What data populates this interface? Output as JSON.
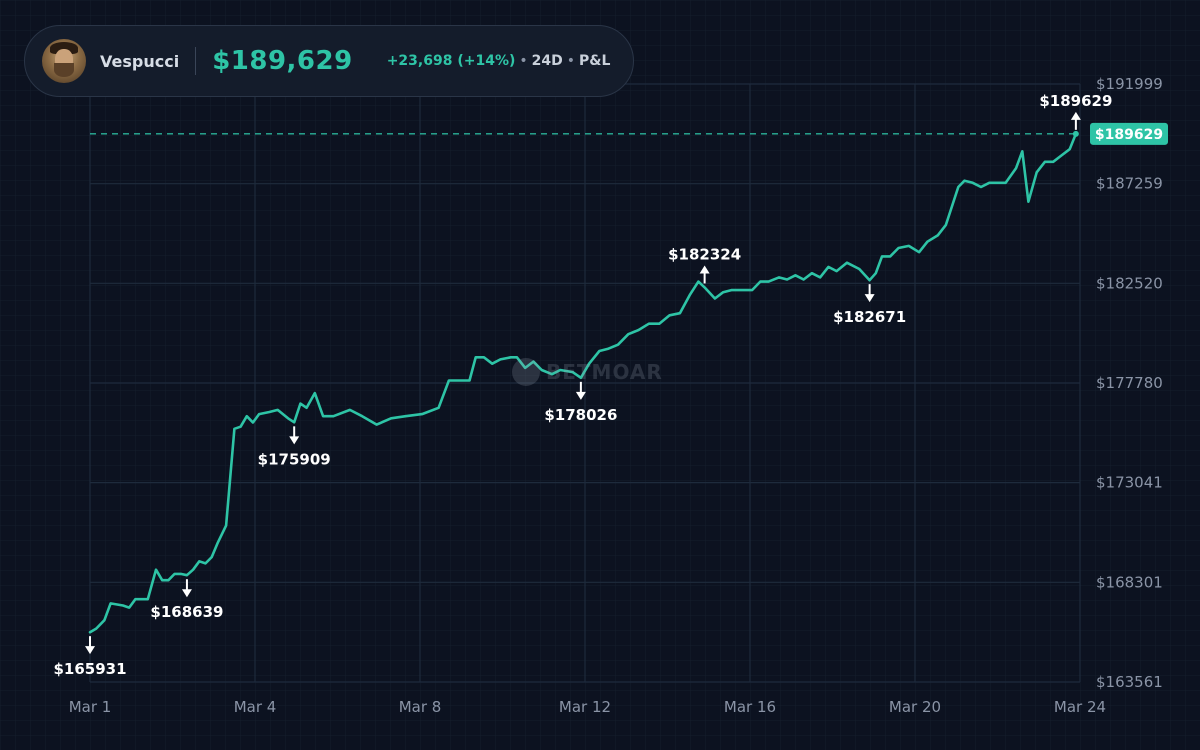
{
  "header": {
    "user_name": "Vespucci",
    "balance": "$189,629",
    "change": "+23,698  (+14%)",
    "period": "24D",
    "metric": "P&L"
  },
  "watermark": {
    "text": "BETMOAR"
  },
  "colors": {
    "line": "#2ec4a6",
    "background": "#0c1220",
    "grid": "#1e2b3c"
  },
  "chart_data": {
    "type": "line",
    "title": "",
    "xlabel": "",
    "ylabel": "",
    "x_range_days": [
      0,
      23
    ],
    "ylim": [
      163561,
      191999
    ],
    "y_ticks": [
      "$191999",
      "$187259",
      "$182520",
      "$177780",
      "$173041",
      "$168301",
      "$163561"
    ],
    "y_tick_values": [
      191999,
      187259,
      182520,
      177780,
      173041,
      168301,
      163561
    ],
    "x_ticks": [
      "Mar 1",
      "Mar 4",
      "Mar 8",
      "Mar 12",
      "Mar 16",
      "Mar 20",
      "Mar 24"
    ],
    "x_tick_days": [
      0,
      4,
      8,
      12,
      16,
      20,
      24
    ],
    "current_value": 189629,
    "current_label": "$189629",
    "series": [
      {
        "values": [
          [
            0,
            165931
          ],
          [
            0.15,
            166100
          ],
          [
            0.35,
            166500
          ],
          [
            0.5,
            167300
          ],
          [
            0.8,
            167200
          ],
          [
            0.95,
            167100
          ],
          [
            1.1,
            167500
          ],
          [
            1.4,
            167500
          ],
          [
            1.6,
            168900
          ],
          [
            1.75,
            168400
          ],
          [
            1.9,
            168400
          ],
          [
            2.05,
            168700
          ],
          [
            2.2,
            168700
          ],
          [
            2.35,
            168639
          ],
          [
            2.5,
            168900
          ],
          [
            2.65,
            169300
          ],
          [
            2.8,
            169200
          ],
          [
            2.95,
            169500
          ],
          [
            3.1,
            170200
          ],
          [
            3.3,
            171000
          ],
          [
            3.5,
            175600
          ],
          [
            3.65,
            175700
          ],
          [
            3.8,
            176200
          ],
          [
            3.95,
            175900
          ],
          [
            4.1,
            176300
          ],
          [
            4.35,
            176400
          ],
          [
            4.55,
            176500
          ],
          [
            4.8,
            176100
          ],
          [
            4.95,
            175909
          ],
          [
            5.1,
            176800
          ],
          [
            5.25,
            176600
          ],
          [
            5.45,
            177300
          ],
          [
            5.65,
            176200
          ],
          [
            5.9,
            176200
          ],
          [
            6.3,
            176500
          ],
          [
            6.6,
            176200
          ],
          [
            6.95,
            175800
          ],
          [
            7.3,
            176100
          ],
          [
            7.65,
            176200
          ],
          [
            8.05,
            176300
          ],
          [
            8.45,
            176600
          ],
          [
            8.7,
            177900
          ],
          [
            9.2,
            177900
          ],
          [
            9.35,
            179000
          ],
          [
            9.55,
            179000
          ],
          [
            9.75,
            178700
          ],
          [
            9.95,
            178900
          ],
          [
            10.2,
            179000
          ],
          [
            10.35,
            179000
          ],
          [
            10.55,
            178500
          ],
          [
            10.75,
            178800
          ],
          [
            10.95,
            178400
          ],
          [
            11.2,
            178200
          ],
          [
            11.4,
            178400
          ],
          [
            11.7,
            178300
          ],
          [
            11.9,
            178026
          ],
          [
            12.1,
            178700
          ],
          [
            12.35,
            179300
          ],
          [
            12.55,
            179400
          ],
          [
            12.8,
            179600
          ],
          [
            13.05,
            180100
          ],
          [
            13.3,
            180300
          ],
          [
            13.55,
            180600
          ],
          [
            13.8,
            180600
          ],
          [
            14.05,
            181000
          ],
          [
            14.3,
            181100
          ],
          [
            14.55,
            182000
          ],
          [
            14.75,
            182600
          ],
          [
            14.9,
            182324
          ],
          [
            15.15,
            181800
          ],
          [
            15.35,
            182100
          ],
          [
            15.55,
            182200
          ],
          [
            15.8,
            182200
          ],
          [
            16.05,
            182200
          ],
          [
            16.25,
            182600
          ],
          [
            16.45,
            182600
          ],
          [
            16.7,
            182800
          ],
          [
            16.9,
            182700
          ],
          [
            17.1,
            182900
          ],
          [
            17.3,
            182700
          ],
          [
            17.5,
            183000
          ],
          [
            17.7,
            182800
          ],
          [
            17.9,
            183300
          ],
          [
            18.1,
            183100
          ],
          [
            18.35,
            183500
          ],
          [
            18.65,
            183200
          ],
          [
            18.9,
            182671
          ],
          [
            19.05,
            183000
          ],
          [
            19.2,
            183800
          ],
          [
            19.4,
            183800
          ],
          [
            19.6,
            184200
          ],
          [
            19.85,
            184300
          ],
          [
            20.1,
            184000
          ],
          [
            20.3,
            184500
          ],
          [
            20.55,
            184800
          ],
          [
            20.75,
            185300
          ],
          [
            21.05,
            187100
          ],
          [
            21.2,
            187400
          ],
          [
            21.4,
            187300
          ],
          [
            21.6,
            187100
          ],
          [
            21.8,
            187300
          ],
          [
            22.05,
            187300
          ],
          [
            22.2,
            187300
          ],
          [
            22.45,
            188000
          ],
          [
            22.6,
            188800
          ],
          [
            22.75,
            186400
          ],
          [
            22.95,
            187800
          ],
          [
            23.15,
            188300
          ],
          [
            23.35,
            188300
          ],
          [
            23.55,
            188600
          ],
          [
            23.75,
            188900
          ],
          [
            23.9,
            189629
          ]
        ]
      }
    ],
    "annotations": [
      {
        "day": 0,
        "value": 165931,
        "dir": "down",
        "label": "$165931"
      },
      {
        "day": 2.35,
        "value": 168639,
        "dir": "down",
        "label": "$168639"
      },
      {
        "day": 4.95,
        "value": 175909,
        "dir": "down",
        "label": "$175909"
      },
      {
        "day": 11.9,
        "value": 178026,
        "dir": "down",
        "label": "$178026"
      },
      {
        "day": 14.9,
        "value": 182324,
        "dir": "up",
        "label": "$182324"
      },
      {
        "day": 18.9,
        "value": 182671,
        "dir": "down",
        "label": "$182671"
      },
      {
        "day": 23.9,
        "value": 189629,
        "dir": "up",
        "label": "$189629"
      }
    ]
  }
}
